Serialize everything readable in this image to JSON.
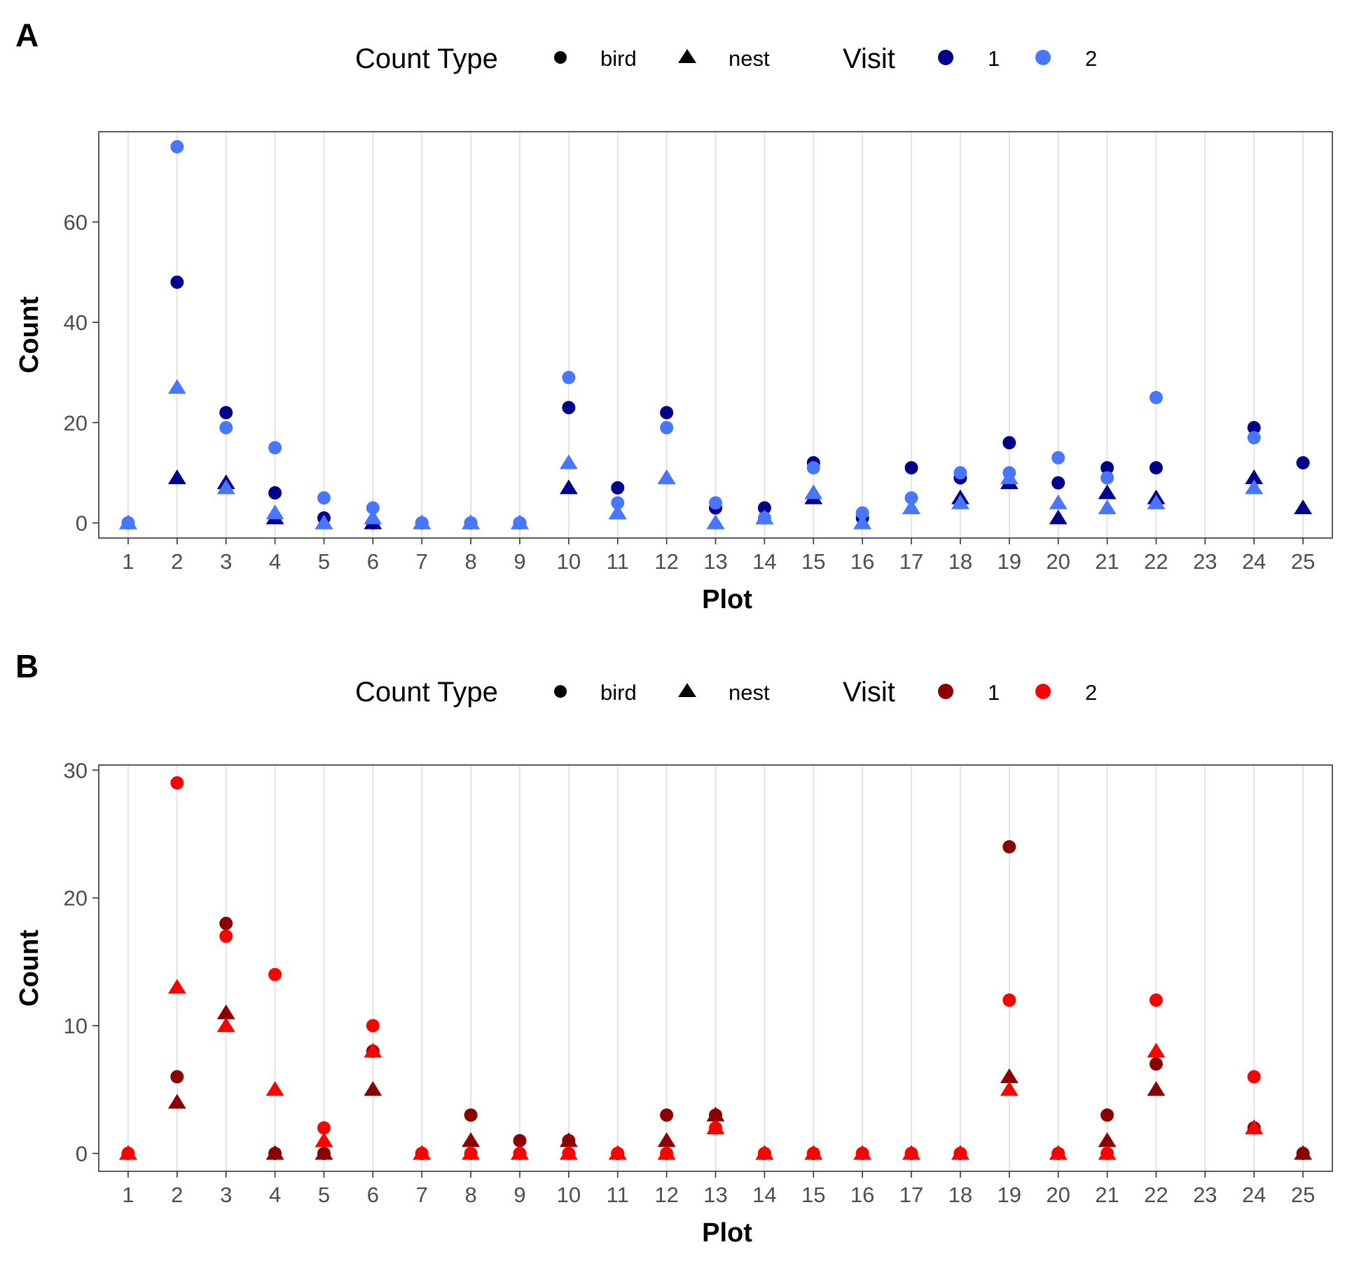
{
  "chart_data": [
    {
      "panel": "A",
      "type": "scatter",
      "xlabel": "Plot",
      "ylabel": "Count",
      "x_ticks": [
        "1",
        "2",
        "3",
        "4",
        "5",
        "6",
        "7",
        "8",
        "9",
        "10",
        "11",
        "12",
        "13",
        "14",
        "15",
        "16",
        "17",
        "18",
        "19",
        "20",
        "21",
        "22",
        "23",
        "24",
        "25"
      ],
      "y_ticks": [
        "0",
        "20",
        "40",
        "60"
      ],
      "ylim": [
        -3,
        78
      ],
      "grid": "vertical major",
      "legend": {
        "position": "top",
        "shape_title": "Count Type",
        "shape_items": [
          {
            "label": "bird",
            "shape": "circle"
          },
          {
            "label": "nest",
            "shape": "triangle"
          }
        ],
        "color_title": "Visit",
        "color_items": [
          {
            "label": "1",
            "color": "#00008B"
          },
          {
            "label": "2",
            "color": "#4876FF"
          }
        ]
      },
      "series": [
        {
          "count_type": "bird",
          "visit": "1",
          "color": "#00008B",
          "shape": "circle",
          "points": [
            [
              1,
              0
            ],
            [
              2,
              48
            ],
            [
              3,
              22
            ],
            [
              4,
              6
            ],
            [
              5,
              1
            ],
            [
              6,
              0
            ],
            [
              7,
              0
            ],
            [
              8,
              0
            ],
            [
              9,
              0
            ],
            [
              10,
              23
            ],
            [
              11,
              7
            ],
            [
              12,
              22
            ],
            [
              13,
              3
            ],
            [
              14,
              3
            ],
            [
              15,
              12
            ],
            [
              16,
              1
            ],
            [
              17,
              11
            ],
            [
              18,
              9
            ],
            [
              19,
              16
            ],
            [
              20,
              8
            ],
            [
              21,
              11
            ],
            [
              22,
              11
            ],
            [
              24,
              19
            ],
            [
              25,
              12
            ]
          ]
        },
        {
          "count_type": "nest",
          "visit": "1",
          "color": "#00008B",
          "shape": "triangle",
          "points": [
            [
              1,
              0
            ],
            [
              2,
              9
            ],
            [
              3,
              8
            ],
            [
              4,
              1
            ],
            [
              5,
              0
            ],
            [
              6,
              0
            ],
            [
              7,
              0
            ],
            [
              8,
              0
            ],
            [
              9,
              0
            ],
            [
              10,
              7
            ],
            [
              11,
              2
            ],
            [
              12,
              9
            ],
            [
              13,
              0
            ],
            [
              14,
              1
            ],
            [
              15,
              5
            ],
            [
              16,
              0
            ],
            [
              17,
              3
            ],
            [
              18,
              5
            ],
            [
              19,
              8
            ],
            [
              20,
              1
            ],
            [
              21,
              6
            ],
            [
              22,
              5
            ],
            [
              24,
              9
            ],
            [
              25,
              3
            ]
          ]
        },
        {
          "count_type": "bird",
          "visit": "2",
          "color": "#4876FF",
          "shape": "circle",
          "points": [
            [
              1,
              0
            ],
            [
              2,
              75
            ],
            [
              3,
              19
            ],
            [
              4,
              15
            ],
            [
              5,
              5
            ],
            [
              6,
              3
            ],
            [
              7,
              0
            ],
            [
              8,
              0
            ],
            [
              9,
              0
            ],
            [
              10,
              29
            ],
            [
              11,
              4
            ],
            [
              12,
              19
            ],
            [
              13,
              4
            ],
            [
              14,
              1
            ],
            [
              15,
              11
            ],
            [
              16,
              2
            ],
            [
              17,
              5
            ],
            [
              18,
              10
            ],
            [
              19,
              10
            ],
            [
              20,
              13
            ],
            [
              21,
              9
            ],
            [
              22,
              25
            ],
            [
              24,
              17
            ]
          ]
        },
        {
          "count_type": "nest",
          "visit": "2",
          "color": "#4876FF",
          "shape": "triangle",
          "points": [
            [
              1,
              0
            ],
            [
              2,
              27
            ],
            [
              3,
              7
            ],
            [
              4,
              2
            ],
            [
              5,
              0
            ],
            [
              6,
              1
            ],
            [
              7,
              0
            ],
            [
              8,
              0
            ],
            [
              9,
              0
            ],
            [
              10,
              12
            ],
            [
              11,
              2
            ],
            [
              12,
              9
            ],
            [
              13,
              0
            ],
            [
              14,
              1
            ],
            [
              15,
              6
            ],
            [
              16,
              0
            ],
            [
              17,
              3
            ],
            [
              18,
              4
            ],
            [
              19,
              9
            ],
            [
              20,
              4
            ],
            [
              21,
              3
            ],
            [
              22,
              4
            ],
            [
              24,
              7
            ]
          ]
        }
      ]
    },
    {
      "panel": "B",
      "type": "scatter",
      "xlabel": "Plot",
      "ylabel": "Count",
      "x_ticks": [
        "1",
        "2",
        "3",
        "4",
        "5",
        "6",
        "7",
        "8",
        "9",
        "10",
        "11",
        "12",
        "13",
        "14",
        "15",
        "16",
        "17",
        "18",
        "19",
        "20",
        "21",
        "22",
        "23",
        "24",
        "25"
      ],
      "y_ticks": [
        "0",
        "10",
        "20",
        "30"
      ],
      "ylim": [
        -1.4,
        30.4
      ],
      "grid": "vertical major",
      "legend": {
        "position": "top",
        "shape_title": "Count Type",
        "shape_items": [
          {
            "label": "bird",
            "shape": "circle"
          },
          {
            "label": "nest",
            "shape": "triangle"
          }
        ],
        "color_title": "Visit",
        "color_items": [
          {
            "label": "1",
            "color": "#8B0000"
          },
          {
            "label": "2",
            "color": "#FF0000"
          }
        ]
      },
      "series": [
        {
          "count_type": "bird",
          "visit": "1",
          "color": "#8B0000",
          "shape": "circle",
          "points": [
            [
              1,
              0
            ],
            [
              2,
              6
            ],
            [
              3,
              18
            ],
            [
              4,
              0
            ],
            [
              5,
              0
            ],
            [
              6,
              8
            ],
            [
              7,
              0
            ],
            [
              8,
              3
            ],
            [
              9,
              1
            ],
            [
              10,
              1
            ],
            [
              11,
              0
            ],
            [
              12,
              3
            ],
            [
              13,
              3
            ],
            [
              14,
              0
            ],
            [
              15,
              0
            ],
            [
              16,
              0
            ],
            [
              17,
              0
            ],
            [
              18,
              0
            ],
            [
              19,
              24
            ],
            [
              20,
              0
            ],
            [
              21,
              3
            ],
            [
              22,
              7
            ],
            [
              24,
              2
            ],
            [
              25,
              0
            ]
          ]
        },
        {
          "count_type": "nest",
          "visit": "1",
          "color": "#8B0000",
          "shape": "triangle",
          "points": [
            [
              1,
              0
            ],
            [
              2,
              4
            ],
            [
              3,
              11
            ],
            [
              4,
              0
            ],
            [
              5,
              0
            ],
            [
              6,
              5
            ],
            [
              7,
              0
            ],
            [
              8,
              1
            ],
            [
              9,
              0
            ],
            [
              10,
              1
            ],
            [
              11,
              0
            ],
            [
              12,
              1
            ],
            [
              13,
              3
            ],
            [
              14,
              0
            ],
            [
              15,
              0
            ],
            [
              16,
              0
            ],
            [
              17,
              0
            ],
            [
              18,
              0
            ],
            [
              19,
              6
            ],
            [
              20,
              0
            ],
            [
              21,
              1
            ],
            [
              22,
              5
            ],
            [
              24,
              2
            ],
            [
              25,
              0
            ]
          ]
        },
        {
          "count_type": "bird",
          "visit": "2",
          "color": "#FF0000",
          "shape": "circle",
          "points": [
            [
              1,
              0
            ],
            [
              2,
              29
            ],
            [
              3,
              17
            ],
            [
              4,
              14
            ],
            [
              5,
              2
            ],
            [
              6,
              10
            ],
            [
              7,
              0
            ],
            [
              8,
              0
            ],
            [
              9,
              0
            ],
            [
              10,
              0
            ],
            [
              11,
              0
            ],
            [
              12,
              0
            ],
            [
              13,
              2
            ],
            [
              14,
              0
            ],
            [
              15,
              0
            ],
            [
              16,
              0
            ],
            [
              17,
              0
            ],
            [
              18,
              0
            ],
            [
              19,
              12
            ],
            [
              20,
              0
            ],
            [
              21,
              0
            ],
            [
              22,
              12
            ],
            [
              24,
              6
            ]
          ]
        },
        {
          "count_type": "nest",
          "visit": "2",
          "color": "#FF0000",
          "shape": "triangle",
          "points": [
            [
              1,
              0
            ],
            [
              2,
              13
            ],
            [
              3,
              10
            ],
            [
              4,
              5
            ],
            [
              5,
              1
            ],
            [
              6,
              8
            ],
            [
              7,
              0
            ],
            [
              8,
              0
            ],
            [
              9,
              0
            ],
            [
              10,
              0
            ],
            [
              11,
              0
            ],
            [
              12,
              0
            ],
            [
              13,
              2
            ],
            [
              14,
              0
            ],
            [
              15,
              0
            ],
            [
              16,
              0
            ],
            [
              17,
              0
            ],
            [
              18,
              0
            ],
            [
              19,
              5
            ],
            [
              20,
              0
            ],
            [
              21,
              0
            ],
            [
              22,
              8
            ],
            [
              24,
              2
            ]
          ]
        }
      ]
    }
  ]
}
